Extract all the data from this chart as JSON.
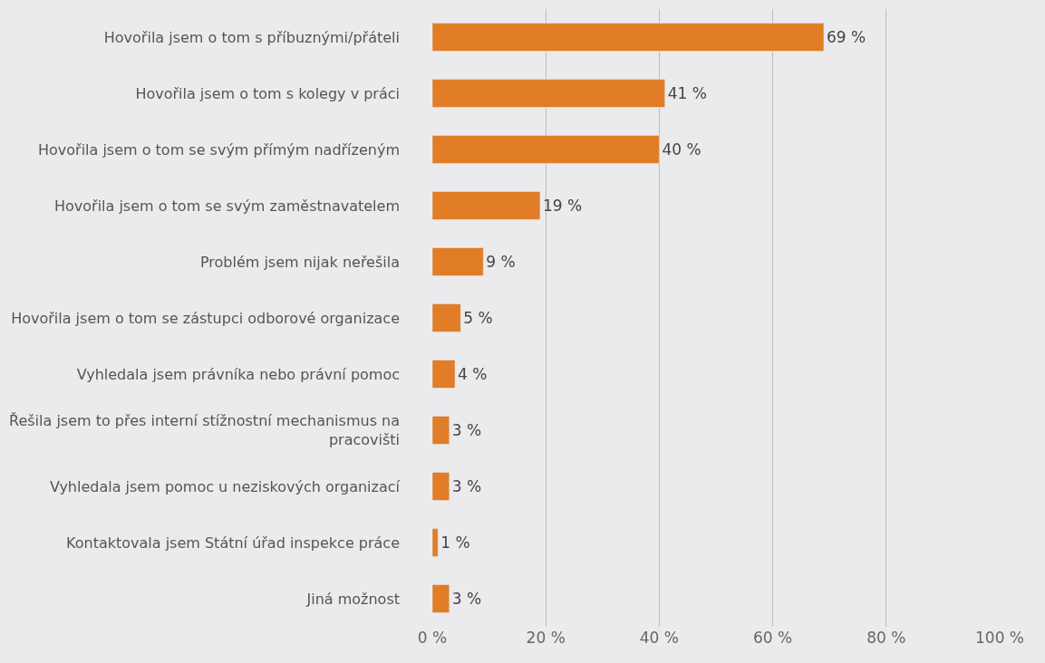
{
  "chart_data": {
    "type": "bar",
    "orientation": "horizontal",
    "categories": [
      "Hovořila jsem o tom s příbuznými/přáteli",
      "Hovořila jsem o tom s kolegy v práci",
      "Hovořila jsem o tom se svým přímým nadřízeným",
      "Hovořila jsem o tom se svým zaměstnavatelem",
      "Problém jsem nijak neřešila",
      "Hovořila jsem o tom se zástupci odborové organizace",
      "Vyhledala jsem právníka nebo právní pomoc",
      "Řešila jsem to přes interní stížnostní mechanismus na\npracovišti",
      "Vyhledala jsem pomoc u neziskových organizací",
      "Kontaktovala jsem Státní úřad inspekce práce",
      "Jiná možnost"
    ],
    "values": [
      69,
      41,
      40,
      19,
      9,
      5,
      4,
      3,
      3,
      1,
      3
    ],
    "value_labels": [
      "69 %",
      "41 %",
      "40 %",
      "19 %",
      "9 %",
      "5 %",
      "4 %",
      "3 %",
      "3 %",
      "1 %",
      "3 %"
    ],
    "color": "#e07d26",
    "xlim": [
      0,
      100
    ],
    "xticks": [
      {
        "value": 0,
        "label": "0 %"
      },
      {
        "value": 20,
        "label": "20 %"
      },
      {
        "value": 40,
        "label": "40 %"
      },
      {
        "value": 60,
        "label": "60 %"
      },
      {
        "value": 80,
        "label": "80 %"
      },
      {
        "value": 100,
        "label": "100 %"
      }
    ],
    "grid": "x",
    "legend": false
  }
}
